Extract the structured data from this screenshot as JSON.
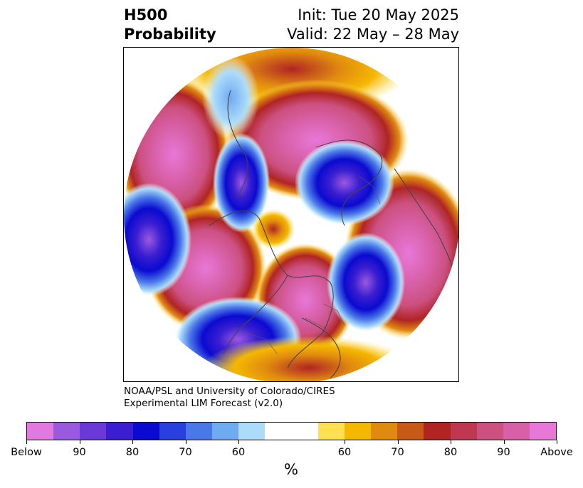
{
  "title": {
    "line1_left": "H500",
    "line2_left": "Probability",
    "line1_right": "Init: Tue 20 May 2025",
    "line2_right": "Valid: 22 May – 28 May"
  },
  "credit": {
    "line1": "NOAA/PSL and University of Colorado/CIRES",
    "line2": "Experimental LIM Forecast (v2.0)"
  },
  "colorbar": {
    "unit": "%",
    "colors": [
      "#e07ae0",
      "#9b59e0",
      "#6a3ad8",
      "#3a1ed0",
      "#0a0ad0",
      "#2a40dc",
      "#4a78e8",
      "#70aaf0",
      "#acdcfa",
      "#ffffff",
      "#ffffff",
      "#ffe050",
      "#f5b800",
      "#e08a10",
      "#c85a18",
      "#b02424",
      "#c03850",
      "#cc5080",
      "#d860a8",
      "#e878d8"
    ],
    "tick_labels": [
      "Below",
      "90",
      "80",
      "70",
      "60",
      "60",
      "70",
      "80",
      "90",
      "Above"
    ]
  },
  "map": {
    "projection": "north-polar-stereographic",
    "variable": "500 hPa height anomaly probability",
    "below_color": "#3a1ed0",
    "above_color": "#d860a8"
  }
}
